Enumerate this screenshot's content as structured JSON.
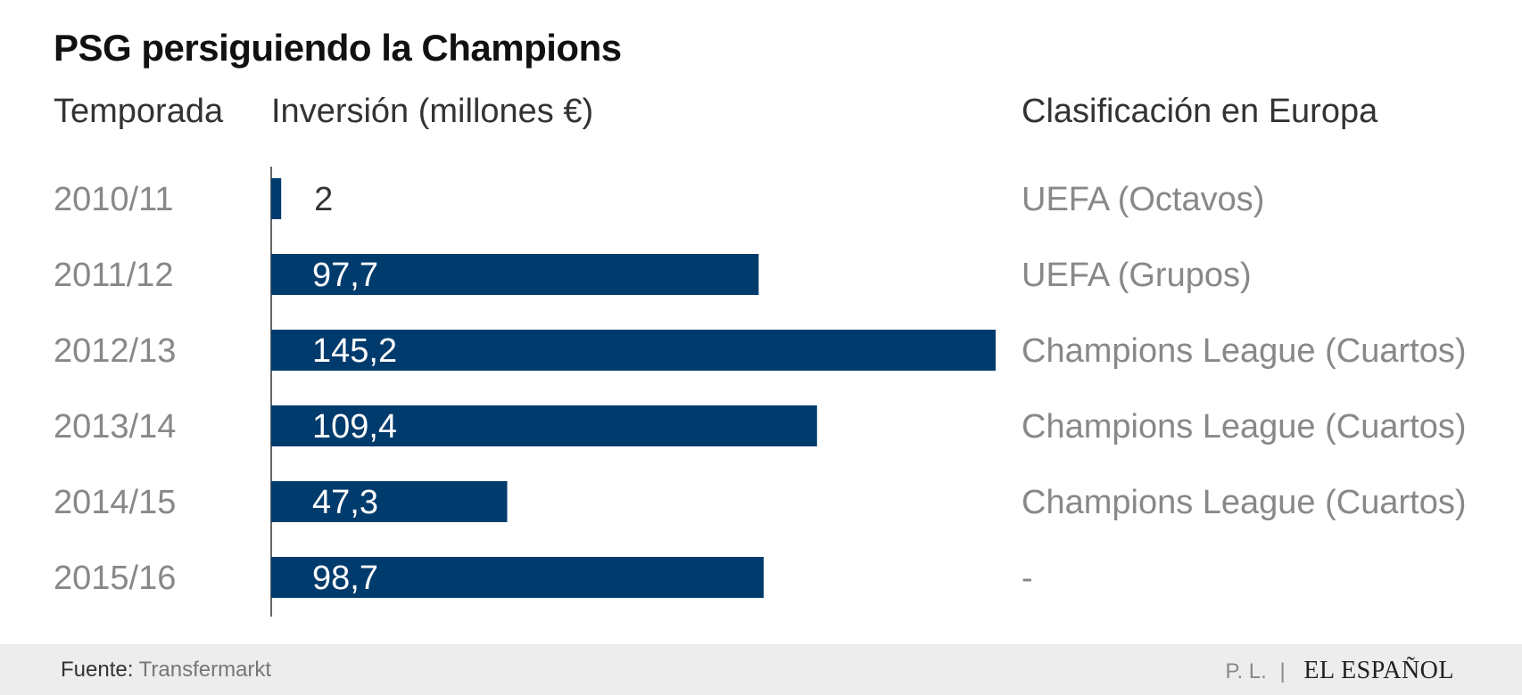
{
  "title": "PSG persiguiendo la Champions",
  "headers": {
    "season": "Temporada",
    "investment": "Inversión (millones €)",
    "classification": "Clasificación en Europa"
  },
  "colors": {
    "bar": "#003b6d",
    "label_inside": "#ffffff",
    "label_outside": "#333333",
    "muted_text": "#888888",
    "footer_bg": "#ededee"
  },
  "chart_data": {
    "type": "bar",
    "orientation": "horizontal",
    "categories": [
      "2010/11",
      "2011/12",
      "2012/13",
      "2013/14",
      "2014/15",
      "2015/16"
    ],
    "values": [
      2,
      97.7,
      145.2,
      109.4,
      47.3,
      98.7
    ],
    "value_labels": [
      "2",
      "97,7",
      "145,2",
      "109,4",
      "47,3",
      "98,7"
    ],
    "classifications": [
      "UEFA (Octavos)",
      "UEFA (Grupos)",
      "Champions League (Cuartos)",
      "Champions League (Cuartos)",
      "Champions League (Cuartos)",
      "-"
    ],
    "xlim": [
      0,
      145.2
    ],
    "grid": false,
    "legend": "none"
  },
  "footer": {
    "source_label": "Fuente:",
    "source_value": "Transfermarkt",
    "author": "P. L.",
    "separator": "|",
    "brand": "EL ESPAÑOL"
  }
}
